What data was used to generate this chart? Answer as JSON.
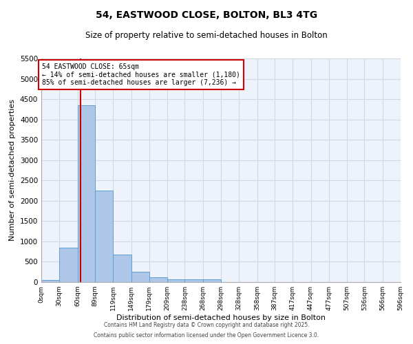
{
  "title": "54, EASTWOOD CLOSE, BOLTON, BL3 4TG",
  "subtitle": "Size of property relative to semi-detached houses in Bolton",
  "xlabel": "Distribution of semi-detached houses by size in Bolton",
  "ylabel": "Number of semi-detached properties",
  "bar_edges": [
    0,
    30,
    60,
    89,
    119,
    149,
    179,
    209,
    238,
    268,
    298,
    328,
    358,
    387,
    417,
    447,
    477,
    507,
    536,
    566,
    596
  ],
  "bar_heights": [
    50,
    850,
    4350,
    2250,
    680,
    260,
    120,
    70,
    60,
    60,
    0,
    0,
    0,
    0,
    0,
    0,
    0,
    0,
    0,
    0
  ],
  "bar_color": "#aec6e8",
  "bar_edge_color": "#5a9fd4",
  "grid_color": "#d0d8e8",
  "background_color": "#eef2fb",
  "property_line_x": 65,
  "property_line_color": "#cc0000",
  "annotation_text": "54 EASTWOOD CLOSE: 65sqm\n← 14% of semi-detached houses are smaller (1,180)\n85% of semi-detached houses are larger (7,236) →",
  "annotation_box_color": "#cc0000",
  "ylim": [
    0,
    5500
  ],
  "yticks": [
    0,
    500,
    1000,
    1500,
    2000,
    2500,
    3000,
    3500,
    4000,
    4500,
    5000,
    5500
  ],
  "xtick_labels": [
    "0sqm",
    "30sqm",
    "60sqm",
    "89sqm",
    "119sqm",
    "149sqm",
    "179sqm",
    "209sqm",
    "238sqm",
    "268sqm",
    "298sqm",
    "328sqm",
    "358sqm",
    "387sqm",
    "417sqm",
    "447sqm",
    "477sqm",
    "507sqm",
    "536sqm",
    "566sqm",
    "596sqm"
  ],
  "footer_line1": "Contains HM Land Registry data © Crown copyright and database right 2025.",
  "footer_line2": "Contains public sector information licensed under the Open Government Licence 3.0."
}
